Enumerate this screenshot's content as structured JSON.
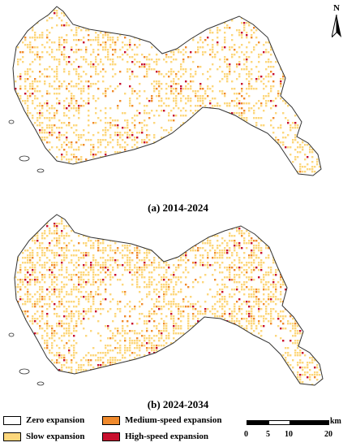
{
  "panels": [
    {
      "label": "(a) 2014-2024",
      "density": 0.55
    },
    {
      "label": "(b) 2024-2034",
      "density": 0.75
    }
  ],
  "north_label": "N",
  "legend": [
    {
      "label": "Zero expansion",
      "color": "#ffffff"
    },
    {
      "label": "Medium-speed expansion",
      "color": "#f08a2c"
    },
    {
      "label": "Slow expansion",
      "color": "#fdd77c"
    },
    {
      "label": "High-speed expansion",
      "color": "#c8102e"
    }
  ],
  "scale": {
    "ticks": [
      "0",
      "5",
      "10",
      "20"
    ],
    "unit": "km"
  },
  "colors": {
    "outline": "#333333",
    "slow": "#fdd77c",
    "medium": "#f08a2c",
    "high": "#c8102e"
  }
}
